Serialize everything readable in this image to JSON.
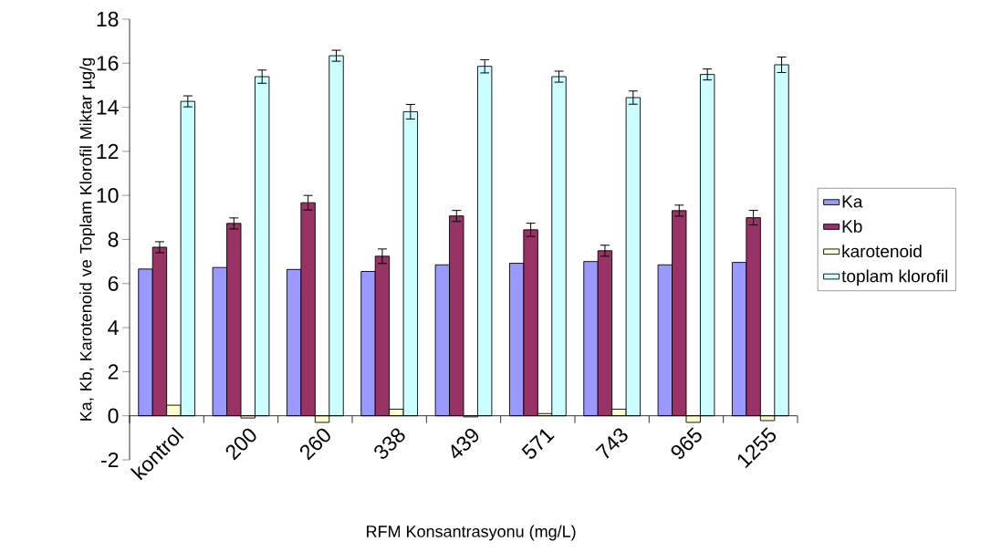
{
  "chart_data": {
    "type": "bar",
    "xlabel": "RFM Konsantrasyonu (mg/L)",
    "ylabel": "Ka, Kb, Karotenoid ve Toplam Klorofil Miktar µg/g",
    "categories": [
      "kontrol",
      "200",
      "260",
      "338",
      "439",
      "571",
      "743",
      "965",
      "1255"
    ],
    "series": [
      {
        "name": "Ka",
        "color": "#9999ff",
        "values": [
          6.66,
          6.73,
          6.64,
          6.55,
          6.85,
          6.92,
          7.0,
          6.85,
          6.96
        ]
      },
      {
        "name": "Kb",
        "color": "#993366",
        "values": [
          7.65,
          8.73,
          9.67,
          7.24,
          9.07,
          8.44,
          7.49,
          9.31,
          8.99
        ],
        "errors": [
          0.25,
          0.25,
          0.33,
          0.33,
          0.25,
          0.3,
          0.25,
          0.25,
          0.33
        ]
      },
      {
        "name": "karotenoid",
        "color": "#ffffcc",
        "values": [
          0.48,
          -0.1,
          -0.3,
          0.3,
          -0.05,
          0.1,
          0.3,
          -0.3,
          -0.22
        ]
      },
      {
        "name": "toplam klorofil",
        "color": "#ccffff",
        "values": [
          14.27,
          15.39,
          16.34,
          13.8,
          15.86,
          15.39,
          14.44,
          15.49,
          15.93
        ],
        "errors": [
          0.25,
          0.3,
          0.25,
          0.33,
          0.3,
          0.25,
          0.3,
          0.25,
          0.35
        ]
      }
    ],
    "ylim": [
      -2,
      18
    ],
    "yticks": [
      -2,
      0,
      2,
      4,
      6,
      8,
      10,
      12,
      14,
      16,
      18
    ],
    "legend": "right"
  }
}
